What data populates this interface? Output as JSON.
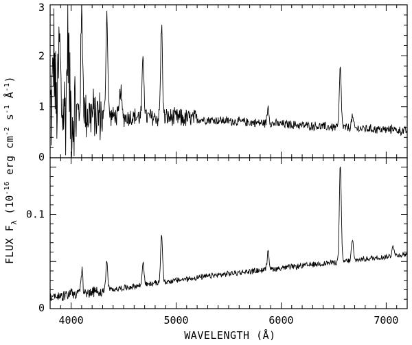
{
  "chart_data": [
    {
      "type": "line",
      "panel": "top",
      "xlim": [
        3800,
        7200
      ],
      "ylim": [
        0,
        3
      ],
      "yticks": [
        0,
        1,
        2,
        3
      ],
      "xticks": [
        4000,
        5000,
        6000,
        7000
      ],
      "xtick_labels": [],
      "continuum": {
        "x": [
          3800,
          4000,
          4200,
          4500,
          5000,
          5500,
          6000,
          6500,
          7000,
          7200
        ],
        "y": [
          0.95,
          0.9,
          0.85,
          0.8,
          0.78,
          0.72,
          0.66,
          0.6,
          0.55,
          0.52
        ]
      },
      "noise_amplitude": [
        {
          "x": [
            3800,
            4050
          ],
          "amp": 1.2
        },
        {
          "x": [
            4050,
            4300
          ],
          "amp": 0.6
        },
        {
          "x": [
            4300,
            5200
          ],
          "amp": 0.22
        },
        {
          "x": [
            5200,
            7200
          ],
          "amp": 0.1
        }
      ],
      "emission_lines": [
        {
          "x": 3835,
          "peak": 2.1
        },
        {
          "x": 3889,
          "peak": 2.2
        },
        {
          "x": 3970,
          "peak": 2.5
        },
        {
          "x": 4102,
          "peak": 2.82
        },
        {
          "x": 4340,
          "peak": 2.83
        },
        {
          "x": 4471,
          "peak": 1.35
        },
        {
          "x": 4686,
          "peak": 1.98
        },
        {
          "x": 4861,
          "peak": 2.58
        },
        {
          "x": 5876,
          "peak": 1.0
        },
        {
          "x": 6563,
          "peak": 1.75
        },
        {
          "x": 6678,
          "peak": 0.8
        },
        {
          "x": 7065,
          "peak": 0.6
        }
      ]
    },
    {
      "type": "line",
      "panel": "bottom",
      "xlim": [
        3800,
        7200
      ],
      "ylim": [
        0,
        0.16
      ],
      "yticks": [
        0,
        0.1
      ],
      "ytick_labels": [
        "0",
        "0.1"
      ],
      "xticks": [
        4000,
        5000,
        6000,
        7000
      ],
      "xtick_labels": [
        "4000",
        "5000",
        "6000",
        "7000"
      ],
      "continuum": {
        "x": [
          3800,
          4000,
          4500,
          5000,
          5500,
          6000,
          6500,
          7000,
          7200
        ],
        "y": [
          0.012,
          0.015,
          0.022,
          0.03,
          0.037,
          0.043,
          0.049,
          0.055,
          0.058
        ]
      },
      "noise_amplitude": [
        {
          "x": [
            3800,
            4300
          ],
          "amp": 0.007
        },
        {
          "x": [
            4300,
            7200
          ],
          "amp": 0.0035
        }
      ],
      "emission_lines": [
        {
          "x": 4102,
          "peak": 0.04
        },
        {
          "x": 4340,
          "peak": 0.05
        },
        {
          "x": 4686,
          "peak": 0.05
        },
        {
          "x": 4861,
          "peak": 0.08
        },
        {
          "x": 5876,
          "peak": 0.063
        },
        {
          "x": 6563,
          "peak": 0.153
        },
        {
          "x": 6678,
          "peak": 0.073
        },
        {
          "x": 7065,
          "peak": 0.068
        }
      ]
    }
  ],
  "axes": {
    "xlabel": "WAVELENGTH (Å)",
    "ylabel": "FLUX F",
    "ylabel_sub": "λ",
    "ylabel_units": "(10",
    "ylabel_exp": "-16",
    "ylabel_rest": " erg cm",
    "ylabel_exp2": "-2",
    "ylabel_rest2": " s",
    "ylabel_exp3": "-1",
    "ylabel_rest3": " Å",
    "ylabel_exp4": "-1",
    "ylabel_close": ")"
  }
}
